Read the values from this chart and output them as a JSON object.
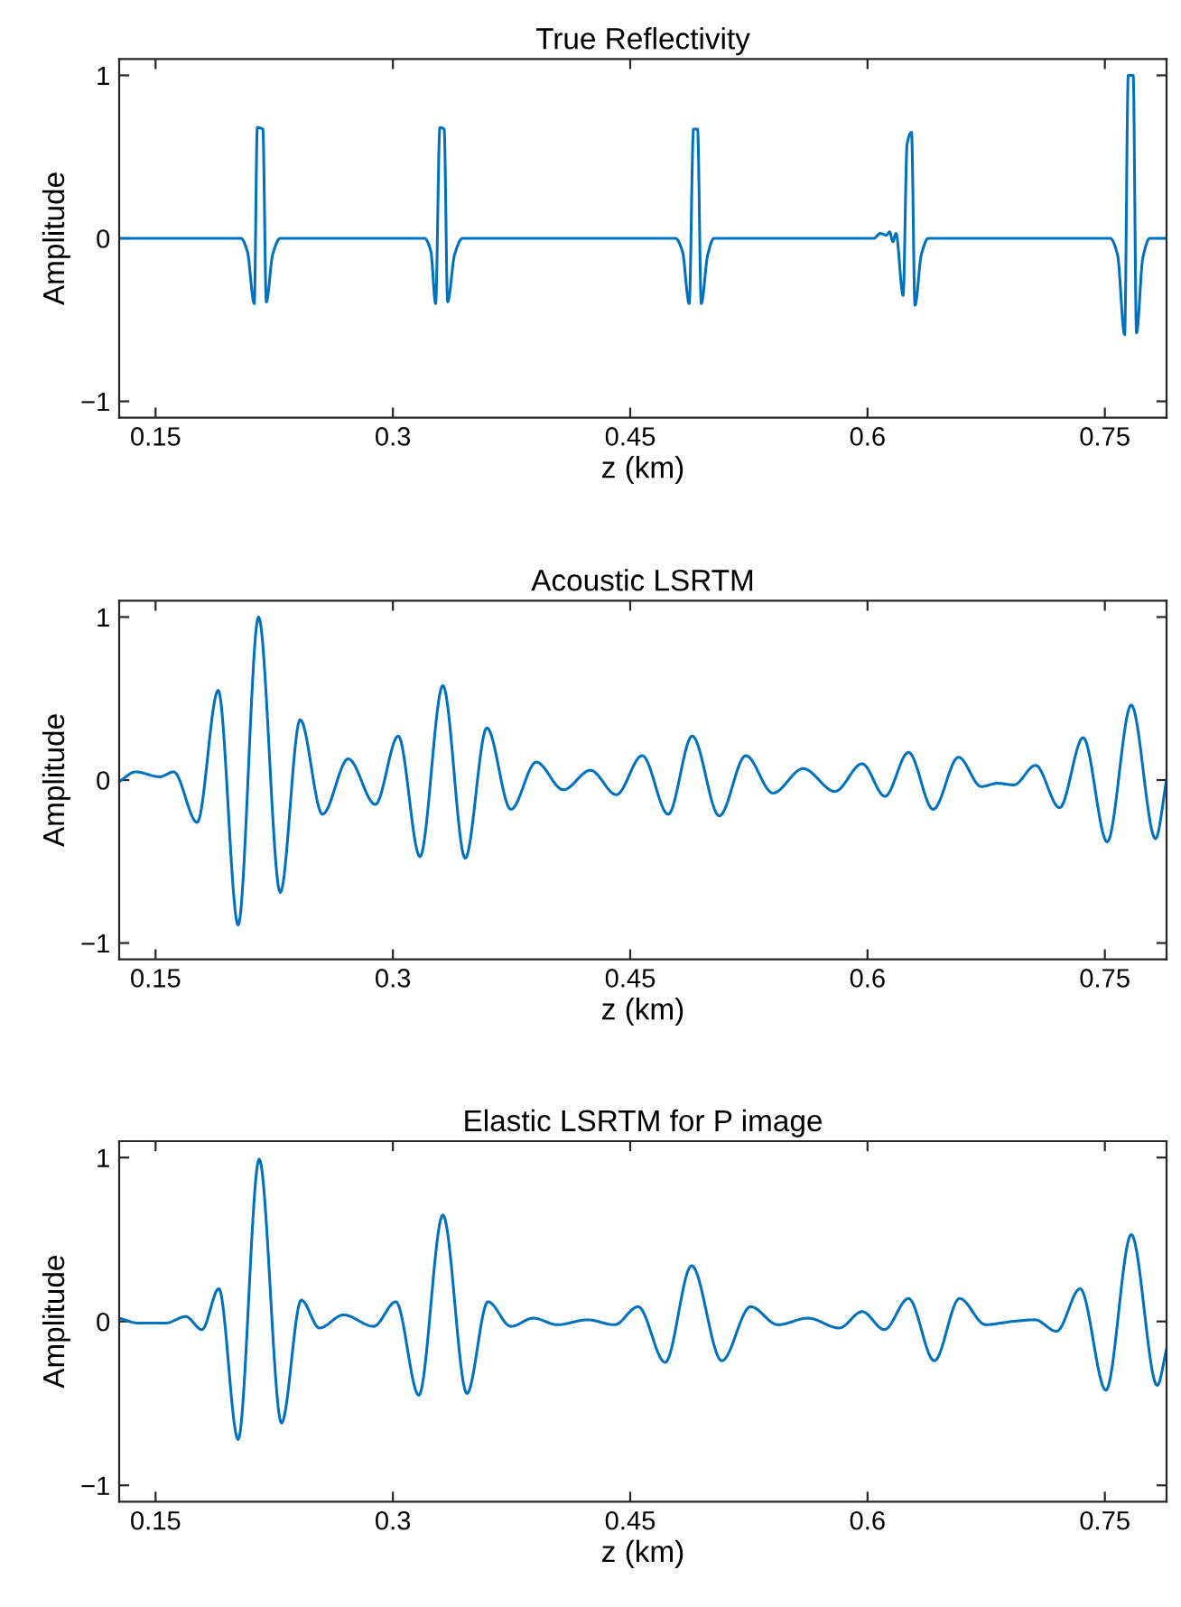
{
  "chart_data": [
    {
      "type": "line",
      "title": "True Reflectivity",
      "xlabel": "z (km)",
      "ylabel": "Amplitude",
      "xlim": [
        0.127,
        0.789
      ],
      "ylim": [
        -1.1,
        1.1
      ],
      "xticks": [
        0.15,
        0.3,
        0.45,
        0.6,
        0.75
      ],
      "yticks": [
        -1,
        0,
        1
      ],
      "grid": false,
      "legend": false,
      "series": [
        {
          "color": "#0072bd",
          "x": [
            0.127,
            0.204,
            0.208,
            0.2124,
            0.2143,
            0.2178,
            0.22,
            0.224,
            0.2288,
            0.32,
            0.324,
            0.327,
            0.3297,
            0.3324,
            0.3346,
            0.339,
            0.344,
            0.4786,
            0.483,
            0.4873,
            0.49,
            0.4926,
            0.4949,
            0.499,
            0.503,
            0.604,
            0.608,
            0.612,
            0.614,
            0.616,
            0.618,
            0.6225,
            0.625,
            0.6278,
            0.63,
            0.634,
            0.6384,
            0.7534,
            0.758,
            0.7625,
            0.7648,
            0.7679,
            0.77,
            0.774,
            0.7784,
            0.789
          ],
          "values": [
            0,
            0,
            -0.08,
            -0.4,
            0.68,
            0.67,
            -0.39,
            -0.1,
            0,
            0,
            -0.08,
            -0.4,
            0.68,
            0.67,
            -0.39,
            -0.1,
            0,
            0,
            -0.08,
            -0.4,
            0.67,
            0.67,
            -0.4,
            -0.1,
            0,
            0,
            0.03,
            0.02,
            0.04,
            -0.02,
            0.03,
            -0.35,
            0.58,
            0.65,
            -0.41,
            -0.1,
            0,
            0,
            -0.1,
            -0.59,
            1.0,
            1.0,
            -0.58,
            -0.12,
            0,
            0
          ]
        }
      ]
    },
    {
      "type": "line",
      "title": "Acoustic LSRTM",
      "xlabel": "z (km)",
      "ylabel": "Amplitude",
      "xlim": [
        0.127,
        0.789
      ],
      "ylim": [
        -1.1,
        1.1
      ],
      "xticks": [
        0.15,
        0.3,
        0.45,
        0.6,
        0.75
      ],
      "yticks": [
        -1,
        0,
        1
      ],
      "grid": false,
      "legend": false,
      "series": [
        {
          "color": "#0072bd",
          "x": [
            0.127,
            0.1374,
            0.1527,
            0.1614,
            0.1763,
            0.1896,
            0.2022,
            0.2151,
            0.2288,
            0.2414,
            0.2555,
            0.2718,
            0.2889,
            0.3034,
            0.3171,
            0.3316,
            0.3457,
            0.3594,
            0.3746,
            0.3906,
            0.4077,
            0.4249,
            0.4412,
            0.4576,
            0.474,
            0.4892,
            0.5063,
            0.5231,
            0.5402,
            0.5593,
            0.5794,
            0.5966,
            0.611,
            0.6259,
            0.6415,
            0.6575,
            0.6719,
            0.6822,
            0.6925,
            0.7062,
            0.7214,
            0.7363,
            0.7515,
            0.7667,
            0.782,
            0.789
          ],
          "values": [
            -0.01,
            0.05,
            0.02,
            0.05,
            -0.26,
            0.55,
            -0.89,
            1.0,
            -0.69,
            0.37,
            -0.21,
            0.13,
            -0.15,
            0.27,
            -0.47,
            0.58,
            -0.48,
            0.32,
            -0.18,
            0.11,
            -0.06,
            0.06,
            -0.09,
            0.15,
            -0.21,
            0.27,
            -0.22,
            0.15,
            -0.08,
            0.07,
            -0.07,
            0.1,
            -0.1,
            0.17,
            -0.18,
            0.14,
            -0.04,
            -0.02,
            -0.03,
            0.09,
            -0.17,
            0.26,
            -0.38,
            0.46,
            -0.36,
            0.0
          ]
        }
      ]
    },
    {
      "type": "line",
      "title": "Elastic LSRTM for P image",
      "xlabel": "z (km)",
      "ylabel": "Amplitude",
      "xlim": [
        0.127,
        0.789
      ],
      "ylim": [
        -1.1,
        1.1
      ],
      "xticks": [
        0.15,
        0.3,
        0.45,
        0.6,
        0.75
      ],
      "yticks": [
        -1,
        0,
        1
      ],
      "grid": false,
      "legend": false,
      "series": [
        {
          "color": "#0072bd",
          "x": [
            0.127,
            0.1393,
            0.1565,
            0.169,
            0.1793,
            0.19,
            0.2022,
            0.2155,
            0.2296,
            0.2421,
            0.2536,
            0.2688,
            0.2878,
            0.3019,
            0.3164,
            0.3316,
            0.3468,
            0.3601,
            0.3746,
            0.3887,
            0.4039,
            0.423,
            0.4401,
            0.455,
            0.4721,
            0.4888,
            0.5079,
            0.5261,
            0.5433,
            0.5623,
            0.5821,
            0.5966,
            0.6106,
            0.6259,
            0.6422,
            0.6582,
            0.6746,
            0.6917,
            0.7058,
            0.7195,
            0.7344,
            0.7507,
            0.7667,
            0.7831,
            0.789
          ],
          "values": [
            0.02,
            -0.01,
            -0.01,
            0.03,
            -0.05,
            0.2,
            -0.72,
            0.99,
            -0.62,
            0.13,
            -0.04,
            0.04,
            -0.03,
            0.12,
            -0.45,
            0.65,
            -0.44,
            0.12,
            -0.03,
            0.02,
            -0.02,
            0.01,
            -0.02,
            0.09,
            -0.25,
            0.34,
            -0.24,
            0.09,
            -0.02,
            0.02,
            -0.04,
            0.06,
            -0.05,
            0.14,
            -0.24,
            0.14,
            -0.02,
            0.0,
            0.01,
            -0.06,
            0.2,
            -0.42,
            0.53,
            -0.39,
            -0.17
          ]
        }
      ]
    }
  ]
}
